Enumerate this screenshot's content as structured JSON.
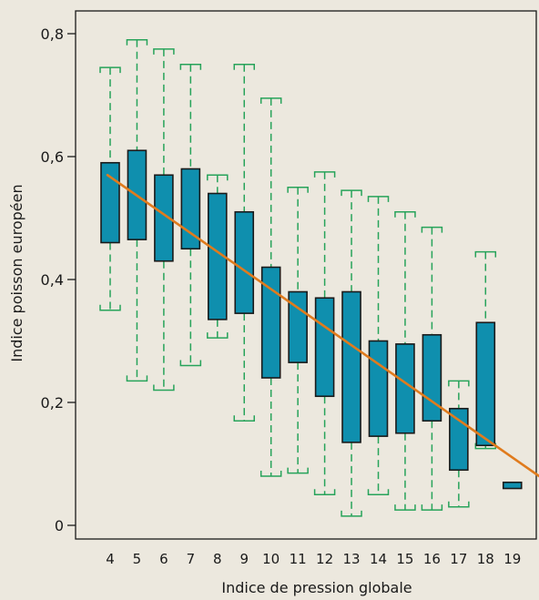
{
  "chart_data": {
    "type": "box",
    "xlabel": "Indice de pression globale",
    "ylabel": "Indice poisson européen",
    "categories": [
      "4",
      "5",
      "6",
      "7",
      "8",
      "9",
      "10",
      "11",
      "12",
      "13",
      "14",
      "15",
      "16",
      "17",
      "18",
      "19"
    ],
    "yticks": [
      "0",
      "0,2",
      "0,4",
      "0,6",
      "0,8"
    ],
    "ytick_values": [
      0,
      0.2,
      0.4,
      0.6,
      0.8
    ],
    "ylim": [
      -0.02,
      0.84
    ],
    "boxes": [
      {
        "x": 4,
        "whisker_low": 0.35,
        "q1": 0.46,
        "q3": 0.59,
        "whisker_high": 0.745
      },
      {
        "x": 5,
        "whisker_low": 0.235,
        "q1": 0.465,
        "q3": 0.61,
        "whisker_high": 0.79
      },
      {
        "x": 6,
        "whisker_low": 0.22,
        "q1": 0.43,
        "q3": 0.57,
        "whisker_high": 0.775
      },
      {
        "x": 7,
        "whisker_low": 0.26,
        "q1": 0.45,
        "q3": 0.58,
        "whisker_high": 0.75
      },
      {
        "x": 8,
        "whisker_low": 0.305,
        "q1": 0.335,
        "q3": 0.54,
        "whisker_high": 0.57
      },
      {
        "x": 9,
        "whisker_low": 0.17,
        "q1": 0.345,
        "q3": 0.51,
        "whisker_high": 0.75
      },
      {
        "x": 10,
        "whisker_low": 0.08,
        "q1": 0.24,
        "q3": 0.42,
        "whisker_high": 0.695
      },
      {
        "x": 11,
        "whisker_low": 0.085,
        "q1": 0.265,
        "q3": 0.38,
        "whisker_high": 0.55
      },
      {
        "x": 12,
        "whisker_low": 0.05,
        "q1": 0.21,
        "q3": 0.37,
        "whisker_high": 0.575
      },
      {
        "x": 13,
        "whisker_low": 0.015,
        "q1": 0.135,
        "q3": 0.38,
        "whisker_high": 0.545
      },
      {
        "x": 14,
        "whisker_low": 0.05,
        "q1": 0.145,
        "q3": 0.3,
        "whisker_high": 0.535
      },
      {
        "x": 15,
        "whisker_low": 0.025,
        "q1": 0.15,
        "q3": 0.295,
        "whisker_high": 0.51
      },
      {
        "x": 16,
        "whisker_low": 0.025,
        "q1": 0.17,
        "q3": 0.31,
        "whisker_high": 0.485
      },
      {
        "x": 17,
        "whisker_low": 0.03,
        "q1": 0.09,
        "q3": 0.19,
        "whisker_high": 0.235
      },
      {
        "x": 18,
        "whisker_low": 0.125,
        "q1": 0.13,
        "q3": 0.33,
        "whisker_high": 0.445
      },
      {
        "x": 19,
        "whisker_low": null,
        "q1": 0.06,
        "q3": 0.07,
        "whisker_high": null
      }
    ],
    "trend_line": {
      "x": [
        3.9,
        20.0
      ],
      "y": [
        0.57,
        0.08
      ]
    },
    "colors": {
      "background": "#ece8de",
      "box_fill": "#0f8fae",
      "box_stroke": "#1a1a1a",
      "whisker": "#27a35a",
      "trend": "#e07b1d",
      "axis": "#1a1a1a"
    },
    "grid": false
  }
}
